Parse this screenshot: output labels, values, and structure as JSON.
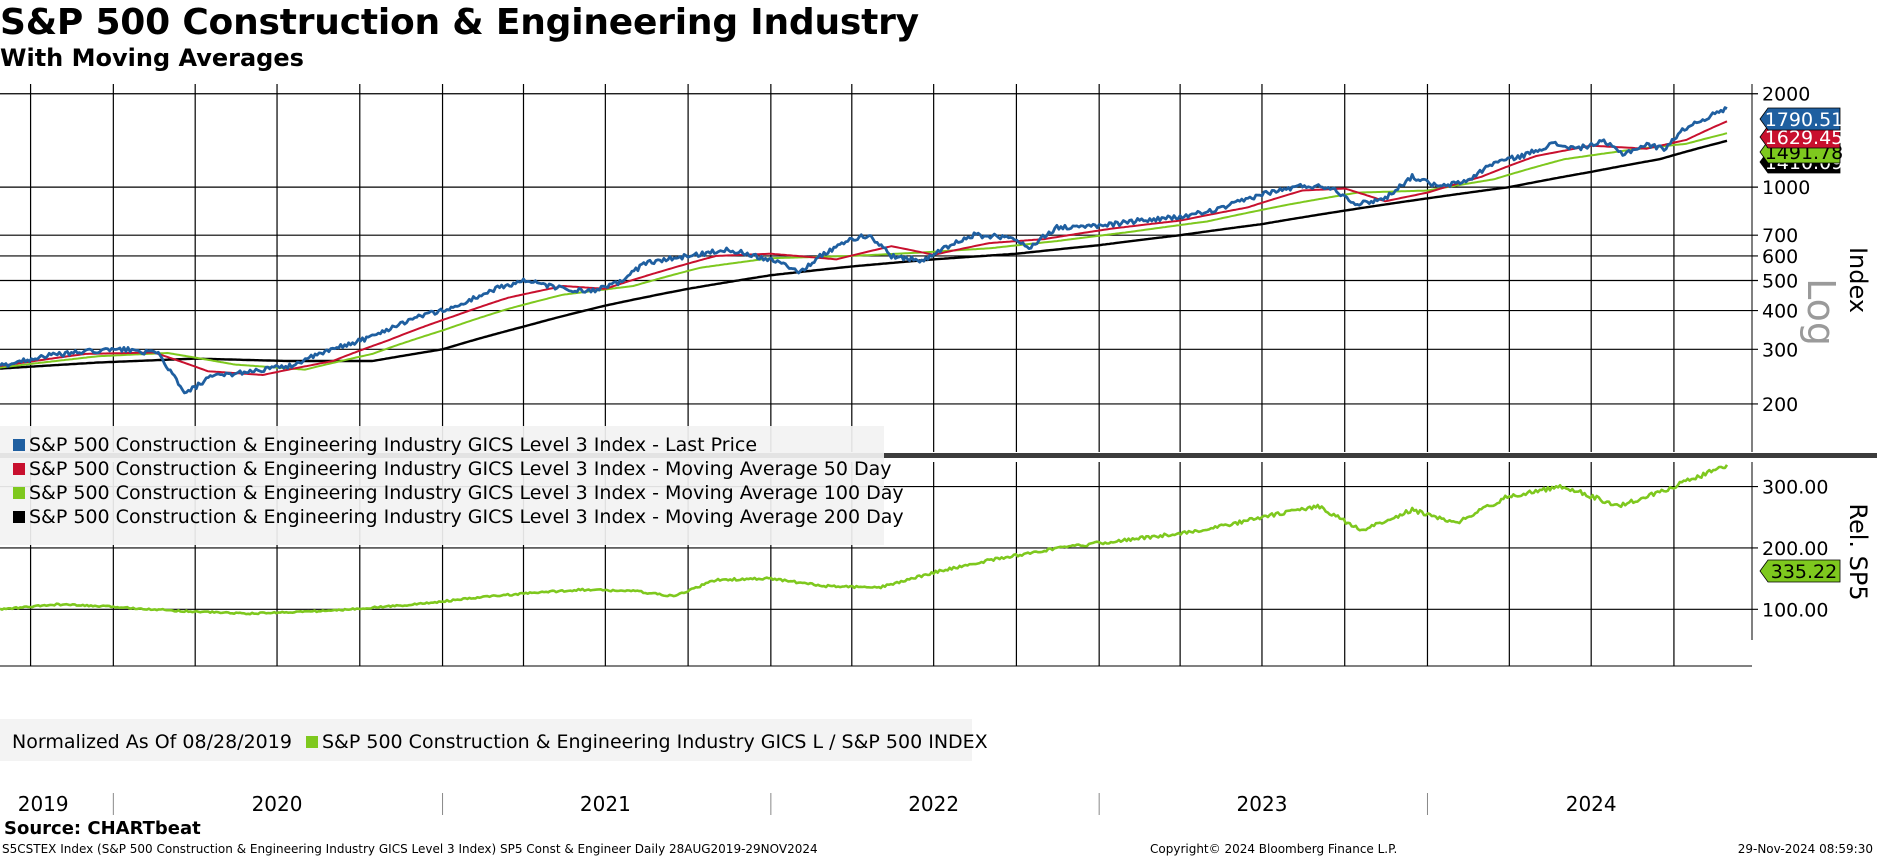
{
  "header": {
    "title": "S&P 500 Construction & Engineering Industry",
    "subtitle": "With Moving Averages"
  },
  "footer": {
    "source": "Source: CHARTbeat",
    "description": "S5CSTEX Index (S&P 500 Construction & Engineering Industry GICS Level 3 Index) SP5 Const & Engineer  Daily 28AUG2019-29NOV2024",
    "copyright": "Copyright© 2024 Bloomberg Finance L.P.",
    "timestamp": "29-Nov-2024 08:59:30"
  },
  "colors": {
    "last_price": "#1f5fa0",
    "ma50": "#c8102e",
    "ma100": "#7ec81e",
    "ma200": "#000000",
    "relative": "#7ec81e"
  },
  "chart_data": [
    {
      "type": "line",
      "panel": "upper",
      "yscale": "log",
      "ylabel": "Index",
      "scale_label": "Log",
      "ylim": [
        140,
        2150
      ],
      "xlim": [
        "2019-08-28",
        "2024-11-29"
      ],
      "yticks": [
        200,
        300,
        400,
        500,
        600,
        700,
        1000,
        2000
      ],
      "xtick_labels": [
        "2019",
        "2020",
        "2021",
        "2022",
        "2023",
        "2024"
      ],
      "grid": true,
      "legend_position": "bottom-left",
      "series": [
        {
          "name": "S&P 500 Construction & Engineering Industry GICS Level 3 Index - Last Price",
          "key": "last_price",
          "last_value_label": "1790.51",
          "points": [
            [
              "2019-08-28",
              265
            ],
            [
              "2019-10-15",
              285
            ],
            [
              "2019-12-01",
              295
            ],
            [
              "2020-01-15",
              300
            ],
            [
              "2020-02-20",
              290
            ],
            [
              "2020-03-20",
              215
            ],
            [
              "2020-04-20",
              245
            ],
            [
              "2020-06-01",
              255
            ],
            [
              "2020-07-15",
              265
            ],
            [
              "2020-09-01",
              300
            ],
            [
              "2020-10-15",
              330
            ],
            [
              "2020-12-01",
              380
            ],
            [
              "2021-01-15",
              410
            ],
            [
              "2021-03-01",
              470
            ],
            [
              "2021-04-01",
              500
            ],
            [
              "2021-05-15",
              470
            ],
            [
              "2021-06-15",
              460
            ],
            [
              "2021-07-15",
              490
            ],
            [
              "2021-08-15",
              570
            ],
            [
              "2021-10-01",
              600
            ],
            [
              "2021-11-15",
              630
            ],
            [
              "2021-12-15",
              600
            ],
            [
              "2022-01-15",
              570
            ],
            [
              "2022-02-01",
              530
            ],
            [
              "2022-03-01",
              610
            ],
            [
              "2022-04-01",
              680
            ],
            [
              "2022-04-20",
              700
            ],
            [
              "2022-05-15",
              600
            ],
            [
              "2022-06-20",
              580
            ],
            [
              "2022-07-15",
              640
            ],
            [
              "2022-08-15",
              700
            ],
            [
              "2022-09-20",
              690
            ],
            [
              "2022-10-15",
              640
            ],
            [
              "2022-11-15",
              740
            ],
            [
              "2023-01-01",
              750
            ],
            [
              "2023-02-15",
              780
            ],
            [
              "2023-04-01",
              800
            ],
            [
              "2023-05-15",
              850
            ],
            [
              "2023-07-01",
              950
            ],
            [
              "2023-08-15",
              1010
            ],
            [
              "2023-09-15",
              1000
            ],
            [
              "2023-10-15",
              880
            ],
            [
              "2023-11-15",
              920
            ],
            [
              "2023-12-15",
              1080
            ],
            [
              "2024-01-15",
              1000
            ],
            [
              "2024-02-15",
              1050
            ],
            [
              "2024-03-15",
              1200
            ],
            [
              "2024-04-15",
              1260
            ],
            [
              "2024-05-20",
              1380
            ],
            [
              "2024-06-15",
              1330
            ],
            [
              "2024-07-15",
              1400
            ],
            [
              "2024-08-05",
              1280
            ],
            [
              "2024-09-01",
              1370
            ],
            [
              "2024-09-20",
              1330
            ],
            [
              "2024-10-15",
              1560
            ],
            [
              "2024-11-29",
              1790.51
            ]
          ]
        },
        {
          "name": "S&P 500 Construction & Engineering Industry GICS Level 3 Index - Moving Average 50 Day",
          "key": "ma50",
          "last_value_label": "1629.45",
          "points": [
            [
              "2019-08-28",
              265
            ],
            [
              "2019-12-01",
              290
            ],
            [
              "2020-02-15",
              293
            ],
            [
              "2020-04-15",
              255
            ],
            [
              "2020-06-15",
              248
            ],
            [
              "2020-09-01",
              275
            ],
            [
              "2020-11-01",
              320
            ],
            [
              "2021-01-15",
              385
            ],
            [
              "2021-03-15",
              440
            ],
            [
              "2021-05-15",
              480
            ],
            [
              "2021-07-01",
              470
            ],
            [
              "2021-09-01",
              535
            ],
            [
              "2021-11-01",
              600
            ],
            [
              "2022-01-01",
              610
            ],
            [
              "2022-03-15",
              585
            ],
            [
              "2022-05-15",
              645
            ],
            [
              "2022-07-01",
              605
            ],
            [
              "2022-09-01",
              660
            ],
            [
              "2022-11-01",
              680
            ],
            [
              "2023-01-15",
              735
            ],
            [
              "2023-04-01",
              780
            ],
            [
              "2023-06-15",
              860
            ],
            [
              "2023-08-15",
              975
            ],
            [
              "2023-10-01",
              990
            ],
            [
              "2023-11-15",
              900
            ],
            [
              "2024-01-01",
              960
            ],
            [
              "2024-03-01",
              1080
            ],
            [
              "2024-05-01",
              1260
            ],
            [
              "2024-07-01",
              1360
            ],
            [
              "2024-09-01",
              1330
            ],
            [
              "2024-10-15",
              1420
            ],
            [
              "2024-11-29",
              1629.45
            ]
          ]
        },
        {
          "name": "S&P 500 Construction & Engineering Industry GICS Level 3 Index - Moving Average 100 Day",
          "key": "ma100",
          "last_value_label": "1491.78",
          "points": [
            [
              "2019-08-28",
              262
            ],
            [
              "2019-12-15",
              285
            ],
            [
              "2020-03-01",
              292
            ],
            [
              "2020-05-15",
              268
            ],
            [
              "2020-08-01",
              258
            ],
            [
              "2020-10-15",
              290
            ],
            [
              "2021-01-01",
              345
            ],
            [
              "2021-03-15",
              405
            ],
            [
              "2021-05-15",
              450
            ],
            [
              "2021-08-01",
              480
            ],
            [
              "2021-10-15",
              550
            ],
            [
              "2022-01-01",
              590
            ],
            [
              "2022-04-01",
              600
            ],
            [
              "2022-06-15",
              615
            ],
            [
              "2022-09-01",
              635
            ],
            [
              "2022-11-15",
              670
            ],
            [
              "2023-02-01",
              715
            ],
            [
              "2023-05-01",
              775
            ],
            [
              "2023-08-01",
              880
            ],
            [
              "2023-10-15",
              960
            ],
            [
              "2024-01-01",
              975
            ],
            [
              "2024-03-15",
              1060
            ],
            [
              "2024-06-01",
              1230
            ],
            [
              "2024-08-15",
              1320
            ],
            [
              "2024-10-15",
              1380
            ],
            [
              "2024-11-29",
              1491.78
            ]
          ]
        },
        {
          "name": "S&P 500 Construction & Engineering Industry GICS Level 3 Index - Moving Average 200 Day",
          "key": "ma200",
          "last_value_label": "1410.09",
          "points": [
            [
              "2019-08-28",
              260
            ],
            [
              "2019-12-15",
              272
            ],
            [
              "2020-04-01",
              280
            ],
            [
              "2020-07-15",
              275
            ],
            [
              "2020-10-15",
              275
            ],
            [
              "2021-01-01",
              300
            ],
            [
              "2021-04-01",
              355
            ],
            [
              "2021-07-01",
              415
            ],
            [
              "2021-10-01",
              470
            ],
            [
              "2022-01-01",
              520
            ],
            [
              "2022-04-01",
              555
            ],
            [
              "2022-07-01",
              585
            ],
            [
              "2022-10-01",
              610
            ],
            [
              "2023-01-01",
              650
            ],
            [
              "2023-04-01",
              700
            ],
            [
              "2023-07-01",
              760
            ],
            [
              "2023-10-01",
              840
            ],
            [
              "2024-01-01",
              920
            ],
            [
              "2024-04-01",
              1000
            ],
            [
              "2024-07-01",
              1120
            ],
            [
              "2024-09-15",
              1230
            ],
            [
              "2024-11-29",
              1410.09
            ]
          ]
        }
      ]
    },
    {
      "type": "line",
      "panel": "lower",
      "ylabel": "Rel. SP5",
      "ylim": [
        50,
        340
      ],
      "xlim": [
        "2019-08-28",
        "2024-11-29"
      ],
      "yticks": [
        100.0,
        200.0,
        300.0
      ],
      "ytick_labels": [
        "100.00",
        "200.00",
        "300.00"
      ],
      "grid": true,
      "legend_position": "bottom-left",
      "legend_note": "Normalized As Of 08/28/2019",
      "series": [
        {
          "name": "S&P 500 Construction & Engineering Industry GICS L / S&P 500 INDEX",
          "key": "relative",
          "last_value_label": "335.22",
          "points": [
            [
              "2019-08-28",
              100
            ],
            [
              "2019-11-01",
              108
            ],
            [
              "2020-01-01",
              104
            ],
            [
              "2020-03-20",
              97
            ],
            [
              "2020-06-01",
              93
            ],
            [
              "2020-09-01",
              98
            ],
            [
              "2020-12-01",
              108
            ],
            [
              "2021-03-01",
              122
            ],
            [
              "2021-06-01",
              132
            ],
            [
              "2021-08-01",
              130
            ],
            [
              "2021-09-15",
              121
            ],
            [
              "2021-11-01",
              148
            ],
            [
              "2022-01-01",
              150
            ],
            [
              "2022-03-01",
              138
            ],
            [
              "2022-05-01",
              135
            ],
            [
              "2022-07-01",
              160
            ],
            [
              "2022-09-01",
              180
            ],
            [
              "2022-11-01",
              196
            ],
            [
              "2023-01-01",
              208
            ],
            [
              "2023-03-01",
              218
            ],
            [
              "2023-05-01",
              230
            ],
            [
              "2023-07-01",
              250
            ],
            [
              "2023-09-01",
              268
            ],
            [
              "2023-10-20",
              228
            ],
            [
              "2023-12-15",
              262
            ],
            [
              "2024-02-01",
              240
            ],
            [
              "2024-04-01",
              285
            ],
            [
              "2024-06-01",
              300
            ],
            [
              "2024-08-01",
              268
            ],
            [
              "2024-10-01",
              300
            ],
            [
              "2024-11-29",
              335.22
            ]
          ]
        }
      ]
    }
  ]
}
